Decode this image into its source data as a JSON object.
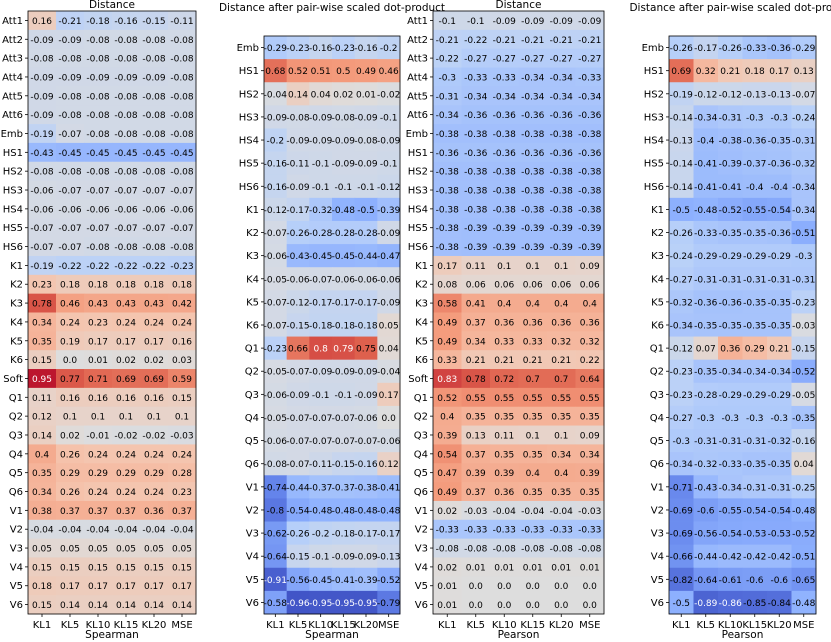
{
  "chart_data": [
    {
      "type": "heatmap",
      "title": "Distance",
      "xlabel": "Spearman",
      "x_ticks": [
        "KL1",
        "KL5",
        "KL10",
        "KL15",
        "KL20",
        "MSE"
      ],
      "y_ticks": [
        "Att1",
        "Att2",
        "Att3",
        "Att4",
        "Att5",
        "Att6",
        "Emb",
        "HS1",
        "HS2",
        "HS3",
        "HS4",
        "HS5",
        "HS6",
        "K1",
        "K2",
        "K3",
        "K4",
        "K5",
        "K6",
        "Soft",
        "Q1",
        "Q2",
        "Q3",
        "Q4",
        "Q5",
        "Q6",
        "V1",
        "V2",
        "V3",
        "V4",
        "V5",
        "V6"
      ],
      "values": [
        [
          0.16,
          -0.21,
          -0.18,
          -0.16,
          -0.15,
          -0.11
        ],
        [
          -0.09,
          -0.09,
          -0.08,
          -0.08,
          -0.08,
          -0.08
        ],
        [
          -0.08,
          -0.08,
          -0.08,
          -0.08,
          -0.08,
          -0.08
        ],
        [
          -0.09,
          -0.09,
          -0.09,
          -0.09,
          -0.09,
          -0.08
        ],
        [
          -0.09,
          -0.08,
          -0.08,
          -0.08,
          -0.08,
          -0.08
        ],
        [
          -0.09,
          -0.08,
          -0.08,
          -0.08,
          -0.08,
          -0.08
        ],
        [
          -0.19,
          -0.07,
          -0.08,
          -0.08,
          -0.08,
          -0.08
        ],
        [
          -0.43,
          -0.45,
          -0.45,
          -0.45,
          -0.45,
          -0.45
        ],
        [
          -0.08,
          -0.08,
          -0.08,
          -0.08,
          -0.08,
          -0.08
        ],
        [
          -0.06,
          -0.07,
          -0.07,
          -0.07,
          -0.07,
          -0.07
        ],
        [
          -0.06,
          -0.06,
          -0.06,
          -0.06,
          -0.06,
          -0.06
        ],
        [
          -0.07,
          -0.07,
          -0.07,
          -0.07,
          -0.07,
          -0.07
        ],
        [
          -0.07,
          -0.07,
          -0.08,
          -0.08,
          -0.08,
          -0.08
        ],
        [
          -0.19,
          -0.22,
          -0.22,
          -0.22,
          -0.22,
          -0.23
        ],
        [
          0.23,
          0.18,
          0.18,
          0.18,
          0.18,
          0.18
        ],
        [
          0.78,
          0.46,
          0.43,
          0.43,
          0.43,
          0.42
        ],
        [
          0.34,
          0.24,
          0.23,
          0.24,
          0.24,
          0.24
        ],
        [
          0.35,
          0.19,
          0.17,
          0.17,
          0.17,
          0.16
        ],
        [
          0.15,
          0.0,
          0.01,
          0.02,
          0.02,
          0.03
        ],
        [
          0.95,
          0.77,
          0.71,
          0.69,
          0.69,
          0.59
        ],
        [
          0.11,
          0.16,
          0.16,
          0.16,
          0.16,
          0.15
        ],
        [
          0.12,
          0.1,
          0.1,
          0.1,
          0.1,
          0.1
        ],
        [
          0.14,
          0.02,
          -0.01,
          -0.02,
          -0.02,
          -0.03
        ],
        [
          0.4,
          0.26,
          0.24,
          0.24,
          0.24,
          0.24
        ],
        [
          0.35,
          0.29,
          0.29,
          0.29,
          0.29,
          0.28
        ],
        [
          0.34,
          0.26,
          0.24,
          0.24,
          0.24,
          0.23
        ],
        [
          0.38,
          0.37,
          0.37,
          0.37,
          0.36,
          0.37
        ],
        [
          -0.04,
          -0.04,
          -0.04,
          -0.04,
          -0.04,
          -0.04
        ],
        [
          0.05,
          0.05,
          0.05,
          0.05,
          0.05,
          0.05
        ],
        [
          0.15,
          0.15,
          0.15,
          0.15,
          0.15,
          0.15
        ],
        [
          0.18,
          0.17,
          0.17,
          0.17,
          0.17,
          0.17
        ],
        [
          0.15,
          0.14,
          0.14,
          0.14,
          0.14,
          0.14
        ]
      ]
    },
    {
      "type": "heatmap",
      "title": "Distance after pair-wise scaled dot-product",
      "xlabel": "Spearman",
      "x_ticks": [
        "KL1",
        "KL5",
        "KL10",
        "KL15",
        "KL20",
        "MSE"
      ],
      "y_ticks": [
        "Emb",
        "HS1",
        "HS2",
        "HS3",
        "HS4",
        "HS5",
        "HS6",
        "K1",
        "K2",
        "K3",
        "K4",
        "K5",
        "K6",
        "Q1",
        "Q2",
        "Q3",
        "Q4",
        "Q5",
        "Q6",
        "V1",
        "V2",
        "V3",
        "V4",
        "V5",
        "V6"
      ],
      "values": [
        [
          -0.29,
          -0.23,
          -0.16,
          -0.23,
          -0.16,
          -0.2
        ],
        [
          0.68,
          0.52,
          0.51,
          0.5,
          0.49,
          0.46
        ],
        [
          -0.04,
          0.14,
          0.04,
          0.02,
          0.01,
          -0.02
        ],
        [
          -0.09,
          -0.08,
          -0.09,
          -0.08,
          -0.09,
          -0.1
        ],
        [
          -0.2,
          -0.09,
          -0.09,
          -0.09,
          -0.08,
          -0.09
        ],
        [
          -0.16,
          -0.11,
          -0.1,
          -0.09,
          -0.09,
          -0.1
        ],
        [
          -0.16,
          -0.09,
          -0.1,
          -0.1,
          -0.1,
          -0.12
        ],
        [
          -0.12,
          -0.17,
          -0.32,
          -0.48,
          -0.5,
          -0.39
        ],
        [
          -0.07,
          -0.26,
          -0.28,
          -0.28,
          -0.28,
          -0.09
        ],
        [
          -0.06,
          -0.43,
          -0.45,
          -0.45,
          -0.44,
          -0.47
        ],
        [
          -0.05,
          -0.06,
          -0.07,
          -0.06,
          -0.06,
          -0.06
        ],
        [
          -0.07,
          -0.12,
          -0.17,
          -0.17,
          -0.17,
          -0.09
        ],
        [
          -0.07,
          -0.15,
          -0.18,
          -0.18,
          -0.18,
          0.05
        ],
        [
          -0.23,
          0.66,
          0.8,
          0.79,
          0.75,
          0.04
        ],
        [
          -0.05,
          -0.07,
          -0.09,
          -0.09,
          -0.09,
          -0.04
        ],
        [
          -0.06,
          -0.09,
          -0.1,
          -0.1,
          -0.09,
          0.17
        ],
        [
          -0.05,
          -0.07,
          -0.07,
          -0.07,
          -0.06,
          0.0
        ],
        [
          -0.06,
          -0.07,
          -0.07,
          -0.07,
          -0.07,
          -0.06
        ],
        [
          -0.08,
          -0.07,
          -0.11,
          -0.15,
          -0.16,
          0.12
        ],
        [
          -0.74,
          -0.44,
          -0.37,
          -0.37,
          -0.38,
          -0.41
        ],
        [
          -0.8,
          -0.54,
          -0.48,
          -0.48,
          -0.48,
          -0.48
        ],
        [
          -0.62,
          -0.26,
          -0.2,
          -0.18,
          -0.17,
          -0.17
        ],
        [
          -0.64,
          -0.15,
          -0.1,
          -0.09,
          -0.09,
          -0.13
        ],
        [
          -0.91,
          -0.56,
          -0.45,
          -0.41,
          -0.39,
          -0.52
        ],
        [
          -0.58,
          -0.96,
          -0.95,
          -0.95,
          -0.95,
          -0.79
        ]
      ]
    },
    {
      "type": "heatmap",
      "title": "Distance",
      "xlabel": "Pearson",
      "x_ticks": [
        "KL1",
        "KL5",
        "KL10",
        "KL15",
        "KL20",
        "MSE"
      ],
      "y_ticks": [
        "Att1",
        "Att2",
        "Att3",
        "Att4",
        "Att5",
        "Att6",
        "Emb",
        "HS1",
        "HS2",
        "HS3",
        "HS4",
        "HS5",
        "HS6",
        "K1",
        "K2",
        "K3",
        "K4",
        "K5",
        "K6",
        "Soft",
        "Q1",
        "Q2",
        "Q3",
        "Q4",
        "Q5",
        "Q6",
        "V1",
        "V2",
        "V3",
        "V4",
        "V5",
        "V6"
      ],
      "values": [
        [
          -0.1,
          -0.1,
          -0.09,
          -0.09,
          -0.09,
          -0.09
        ],
        [
          -0.21,
          -0.22,
          -0.21,
          -0.21,
          -0.21,
          -0.21
        ],
        [
          -0.22,
          -0.27,
          -0.27,
          -0.27,
          -0.27,
          -0.27
        ],
        [
          -0.3,
          -0.33,
          -0.33,
          -0.34,
          -0.34,
          -0.33
        ],
        [
          -0.31,
          -0.34,
          -0.34,
          -0.34,
          -0.34,
          -0.34
        ],
        [
          -0.34,
          -0.36,
          -0.36,
          -0.36,
          -0.36,
          -0.36
        ],
        [
          -0.38,
          -0.38,
          -0.38,
          -0.38,
          -0.38,
          -0.38
        ],
        [
          -0.36,
          -0.36,
          -0.36,
          -0.36,
          -0.36,
          -0.36
        ],
        [
          -0.38,
          -0.38,
          -0.38,
          -0.38,
          -0.38,
          -0.38
        ],
        [
          -0.38,
          -0.38,
          -0.38,
          -0.38,
          -0.38,
          -0.38
        ],
        [
          -0.38,
          -0.38,
          -0.38,
          -0.38,
          -0.38,
          -0.38
        ],
        [
          -0.38,
          -0.39,
          -0.39,
          -0.39,
          -0.39,
          -0.39
        ],
        [
          -0.38,
          -0.39,
          -0.39,
          -0.39,
          -0.39,
          -0.39
        ],
        [
          0.17,
          0.11,
          0.1,
          0.1,
          0.1,
          0.09
        ],
        [
          0.08,
          0.06,
          0.06,
          0.06,
          0.06,
          0.06
        ],
        [
          0.58,
          0.41,
          0.4,
          0.4,
          0.4,
          0.4
        ],
        [
          0.49,
          0.37,
          0.36,
          0.36,
          0.36,
          0.36
        ],
        [
          0.49,
          0.34,
          0.33,
          0.33,
          0.32,
          0.32
        ],
        [
          0.33,
          0.21,
          0.21,
          0.21,
          0.21,
          0.22
        ],
        [
          0.83,
          0.78,
          0.72,
          0.7,
          0.7,
          0.64
        ],
        [
          0.52,
          0.55,
          0.55,
          0.55,
          0.55,
          0.55
        ],
        [
          0.4,
          0.35,
          0.35,
          0.35,
          0.35,
          0.35
        ],
        [
          0.39,
          0.13,
          0.11,
          0.1,
          0.1,
          0.09
        ],
        [
          0.54,
          0.37,
          0.35,
          0.35,
          0.34,
          0.34
        ],
        [
          0.47,
          0.39,
          0.39,
          0.4,
          0.4,
          0.39
        ],
        [
          0.49,
          0.37,
          0.36,
          0.35,
          0.35,
          0.35
        ],
        [
          0.02,
          -0.03,
          -0.04,
          -0.04,
          -0.04,
          -0.03
        ],
        [
          -0.33,
          -0.33,
          -0.33,
          -0.33,
          -0.33,
          -0.33
        ],
        [
          -0.08,
          -0.08,
          -0.08,
          -0.08,
          -0.08,
          -0.08
        ],
        [
          0.02,
          0.01,
          0.01,
          0.01,
          0.01,
          0.01
        ],
        [
          0.01,
          0.0,
          0.0,
          0.0,
          0.0,
          0.0
        ],
        [
          0.01,
          0.0,
          0.0,
          0.0,
          0.0,
          0.0
        ]
      ]
    },
    {
      "type": "heatmap",
      "title": "Distance after pair-wise scaled dot-product",
      "xlabel": "Pearson",
      "x_ticks": [
        "KL1",
        "KL5",
        "KL10",
        "KL15",
        "KL20",
        "MSE"
      ],
      "y_ticks": [
        "Emb",
        "HS1",
        "HS2",
        "HS3",
        "HS4",
        "HS5",
        "HS6",
        "K1",
        "K2",
        "K3",
        "K4",
        "K5",
        "K6",
        "Q1",
        "Q2",
        "Q3",
        "Q4",
        "Q5",
        "Q6",
        "V1",
        "V2",
        "V3",
        "V4",
        "V5",
        "V6"
      ],
      "values": [
        [
          -0.26,
          -0.17,
          -0.26,
          -0.33,
          -0.36,
          -0.29
        ],
        [
          0.69,
          0.32,
          0.21,
          0.18,
          0.17,
          0.13
        ],
        [
          -0.19,
          -0.12,
          -0.12,
          -0.13,
          -0.13,
          -0.07
        ],
        [
          -0.14,
          -0.34,
          -0.31,
          -0.3,
          -0.3,
          -0.24
        ],
        [
          -0.13,
          -0.4,
          -0.38,
          -0.36,
          -0.35,
          -0.31
        ],
        [
          -0.14,
          -0.41,
          -0.39,
          -0.37,
          -0.36,
          -0.32
        ],
        [
          -0.14,
          -0.41,
          -0.41,
          -0.4,
          -0.4,
          -0.34
        ],
        [
          -0.5,
          -0.48,
          -0.52,
          -0.55,
          -0.54,
          -0.34
        ],
        [
          -0.26,
          -0.33,
          -0.35,
          -0.35,
          -0.36,
          -0.51
        ],
        [
          -0.24,
          -0.29,
          -0.29,
          -0.29,
          -0.29,
          -0.3
        ],
        [
          -0.27,
          -0.31,
          -0.31,
          -0.31,
          -0.31,
          -0.31
        ],
        [
          -0.32,
          -0.36,
          -0.36,
          -0.35,
          -0.35,
          -0.23
        ],
        [
          -0.34,
          -0.35,
          -0.35,
          -0.35,
          -0.35,
          -0.03
        ],
        [
          -0.12,
          0.07,
          0.36,
          0.29,
          0.21,
          -0.15
        ],
        [
          -0.23,
          -0.35,
          -0.34,
          -0.34,
          -0.34,
          -0.52
        ],
        [
          -0.23,
          -0.28,
          -0.29,
          -0.29,
          -0.29,
          -0.05
        ],
        [
          -0.27,
          -0.3,
          -0.3,
          -0.3,
          -0.3,
          -0.35
        ],
        [
          -0.3,
          -0.31,
          -0.31,
          -0.31,
          -0.32,
          -0.16
        ],
        [
          -0.34,
          -0.32,
          -0.33,
          -0.35,
          -0.35,
          0.04
        ],
        [
          -0.71,
          -0.43,
          -0.34,
          -0.31,
          -0.31,
          -0.25
        ],
        [
          -0.69,
          -0.6,
          -0.55,
          -0.54,
          -0.54,
          -0.48
        ],
        [
          -0.69,
          -0.56,
          -0.54,
          -0.53,
          -0.53,
          -0.52
        ],
        [
          -0.66,
          -0.44,
          -0.42,
          -0.42,
          -0.42,
          -0.51
        ],
        [
          -0.82,
          -0.64,
          -0.61,
          -0.6,
          -0.6,
          -0.65
        ],
        [
          -0.5,
          -0.89,
          -0.86,
          -0.85,
          -0.84,
          -0.48
        ]
      ]
    }
  ]
}
